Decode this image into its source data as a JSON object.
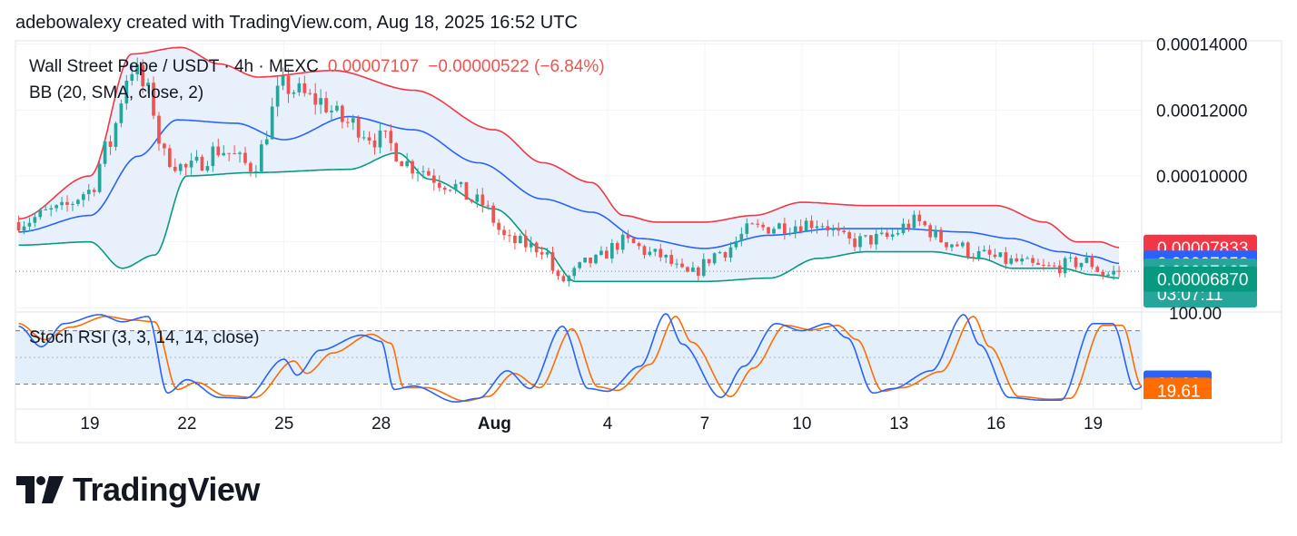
{
  "header": {
    "credit": "adebowalexy created with TradingView.com, Aug 18, 2025 16:52 UTC"
  },
  "legend": {
    "symbol": "Wall Street Pepe / USDT · 4h · MEXC",
    "last": "0.00007107",
    "change": "−0.00000522 (−6.84%)",
    "indicator": "BB (20, SMA, close, 2)",
    "stoch": "Stoch RSI (3, 3, 14, 14, close)"
  },
  "brand": {
    "name": "TradingView"
  },
  "colors": {
    "up": "#26a69a",
    "down": "#ef5350",
    "bb_upper": "#f23645",
    "bb_basis": "#2962ff",
    "bb_lower": "#089981",
    "bb_fill": "#e8f1fb",
    "stoch_k": "#2962ff",
    "stoch_d": "#ff6d00",
    "stoch_band": "#e3effa",
    "grid": "#f0f3fa",
    "badge_upper": "#f23645",
    "badge_basis": "#2962ff",
    "badge_last": "#26a69a",
    "badge_lower": "#089981",
    "badge_k": "#2962ff",
    "badge_d": "#ff6d00"
  },
  "chart_data": [
    {
      "type": "candlestick",
      "title": "Wall Street Pepe / USDT · 4h · MEXC",
      "price_axis_labels": [
        "0.00014000",
        "0.00012000",
        "0.00010000"
      ],
      "ylim": [
        5.9e-05,
        0.000141
      ],
      "x_tick_labels": [
        "19",
        "22",
        "25",
        "28",
        "Aug",
        "4",
        "7",
        "10",
        "13",
        "16",
        "19"
      ],
      "x_ticks_day": [
        0,
        3,
        6,
        9,
        12.5,
        16,
        19,
        22,
        25,
        28,
        31
      ],
      "xlim_day": [
        -2.3,
        32.5
      ],
      "candle_anchors": [
        [
          -2.2,
          8.6e-05
        ],
        [
          -1.0,
          8.95e-05
        ],
        [
          0.0,
          9.55e-05
        ],
        [
          0.5,
          0.000108
        ],
        [
          1.3,
          0.000133
        ],
        [
          1.8,
          0.000125
        ],
        [
          2.3,
          0.000106
        ],
        [
          3.0,
          0.000102
        ],
        [
          4.0,
          0.000108
        ],
        [
          5.0,
          0.000103
        ],
        [
          6.0,
          0.000127
        ],
        [
          7.0,
          0.000123
        ],
        [
          8.0,
          0.000116
        ],
        [
          9.0,
          0.000111
        ],
        [
          10.0,
          0.000103
        ],
        [
          11.0,
          9.8e-05
        ],
        [
          12.0,
          9.2e-05
        ],
        [
          13.0,
          8e-05
        ],
        [
          14.0,
          7.8e-05
        ],
        [
          14.5,
          6.8e-05
        ],
        [
          15.5,
          7.4e-05
        ],
        [
          16.5,
          8e-05
        ],
        [
          17.5,
          7.6e-05
        ],
        [
          18.5,
          7e-05
        ],
        [
          19.5,
          7.7e-05
        ],
        [
          20.5,
          8.4e-05
        ],
        [
          21.5,
          8.5e-05
        ],
        [
          22.5,
          8.6e-05
        ],
        [
          23.5,
          8e-05
        ],
        [
          24.5,
          8.1e-05
        ],
        [
          25.5,
          8.6e-05
        ],
        [
          26.5,
          8e-05
        ],
        [
          27.5,
          7.6e-05
        ],
        [
          28.5,
          7.4e-05
        ],
        [
          29.5,
          7.2e-05
        ],
        [
          30.8,
          7.4e-05
        ],
        [
          31.4,
          7e-05
        ],
        [
          31.8,
          7.11e-05
        ]
      ],
      "bb_upper_anchors": [
        [
          -2.2,
          8.7e-05
        ],
        [
          0.0,
          0.0001
        ],
        [
          1.3,
          0.000137
        ],
        [
          2.8,
          0.000139
        ],
        [
          4.0,
          0.000134
        ],
        [
          5.2,
          0.00013
        ],
        [
          7.5,
          0.000132
        ],
        [
          10.0,
          0.000126
        ],
        [
          12.5,
          0.000114
        ],
        [
          14.0,
          0.000104
        ],
        [
          15.5,
          9.8e-05
        ],
        [
          16.5,
          8.8e-05
        ],
        [
          17.5,
          8.6e-05
        ],
        [
          19.0,
          8.6e-05
        ],
        [
          20.5,
          8.8e-05
        ],
        [
          22.0,
          9.2e-05
        ],
        [
          24.0,
          9.1e-05
        ],
        [
          26.5,
          9.1e-05
        ],
        [
          28.0,
          9.1e-05
        ],
        [
          29.5,
          8.6e-05
        ],
        [
          30.5,
          8e-05
        ],
        [
          31.2,
          8e-05
        ],
        [
          31.8,
          7.83e-05
        ]
      ],
      "bb_basis_anchors": [
        [
          -2.2,
          8.3e-05
        ],
        [
          0.0,
          8.8e-05
        ],
        [
          1.5,
          0.000106
        ],
        [
          2.7,
          0.000117
        ],
        [
          4.5,
          0.000116
        ],
        [
          6.0,
          0.000111
        ],
        [
          8.0,
          0.000118
        ],
        [
          10.0,
          0.000114
        ],
        [
          12.0,
          0.000104
        ],
        [
          14.0,
          9.3e-05
        ],
        [
          15.5,
          8.9e-05
        ],
        [
          17.0,
          8.1e-05
        ],
        [
          19.0,
          7.8e-05
        ],
        [
          21.0,
          8.2e-05
        ],
        [
          23.0,
          8.4e-05
        ],
        [
          25.0,
          8.4e-05
        ],
        [
          27.0,
          8.3e-05
        ],
        [
          28.5,
          8.1e-05
        ],
        [
          30.0,
          7.7e-05
        ],
        [
          31.0,
          7.55e-05
        ],
        [
          31.8,
          7.35e-05
        ]
      ],
      "bb_lower_anchors": [
        [
          -2.2,
          7.9e-05
        ],
        [
          0.0,
          8e-05
        ],
        [
          1.0,
          7.2e-05
        ],
        [
          2.0,
          7.6e-05
        ],
        [
          3.0,
          0.0001
        ],
        [
          5.0,
          0.000101
        ],
        [
          8.0,
          0.000102
        ],
        [
          9.5,
          0.000107
        ],
        [
          10.5,
          9.9e-05
        ],
        [
          12.5,
          9e-05
        ],
        [
          14.0,
          7.8e-05
        ],
        [
          15.0,
          6.8e-05
        ],
        [
          17.0,
          6.8e-05
        ],
        [
          19.0,
          6.8e-05
        ],
        [
          21.0,
          6.9e-05
        ],
        [
          22.5,
          7.5e-05
        ],
        [
          24.0,
          7.7e-05
        ],
        [
          26.0,
          7.7e-05
        ],
        [
          27.5,
          7.5e-05
        ],
        [
          28.5,
          7.2e-05
        ],
        [
          30.0,
          7.2e-05
        ],
        [
          31.0,
          7e-05
        ],
        [
          31.8,
          6.9e-05
        ]
      ],
      "right_badges": [
        {
          "label": "0.00007833",
          "value": 7.833e-05,
          "color_key": "badge_upper"
        },
        {
          "label": "0.00007352",
          "value": 7.352e-05,
          "color_key": "badge_basis"
        },
        {
          "label": "0.00007107",
          "sub": "03:07:11",
          "value": 7.107e-05,
          "color_key": "badge_last"
        },
        {
          "label": "0.00006870",
          "value": 6.87e-05,
          "color_key": "badge_lower"
        }
      ],
      "last_price": 7.107e-05
    },
    {
      "type": "line",
      "title": "Stoch RSI (3, 3, 14, 14, close)",
      "ylim": [
        -8,
        100
      ],
      "band": [
        20,
        80
      ],
      "mid": 50,
      "axis_labels": [
        {
          "label": "100.00",
          "value": 100
        }
      ],
      "k_anchors": [
        [
          -2.2,
          85
        ],
        [
          -1.5,
          62
        ],
        [
          -0.8,
          88
        ],
        [
          0.3,
          98
        ],
        [
          1.0,
          90
        ],
        [
          1.8,
          96
        ],
        [
          2.4,
          10
        ],
        [
          3.0,
          25
        ],
        [
          4.0,
          5
        ],
        [
          4.8,
          4
        ],
        [
          6.0,
          48
        ],
        [
          6.4,
          30
        ],
        [
          7.1,
          58
        ],
        [
          8.4,
          75
        ],
        [
          9.0,
          68
        ],
        [
          9.4,
          14
        ],
        [
          10.0,
          18
        ],
        [
          11.3,
          0
        ],
        [
          12.0,
          4
        ],
        [
          12.9,
          35
        ],
        [
          13.6,
          15
        ],
        [
          14.6,
          85
        ],
        [
          15.4,
          15
        ],
        [
          16.0,
          12
        ],
        [
          17.0,
          40
        ],
        [
          17.8,
          99
        ],
        [
          18.3,
          65
        ],
        [
          19.5,
          5
        ],
        [
          20.2,
          40
        ],
        [
          21.2,
          88
        ],
        [
          22.0,
          80
        ],
        [
          22.8,
          88
        ],
        [
          23.4,
          72
        ],
        [
          24.2,
          10
        ],
        [
          24.8,
          15
        ],
        [
          26.0,
          35
        ],
        [
          27.0,
          98
        ],
        [
          27.5,
          64
        ],
        [
          28.4,
          5
        ],
        [
          29.4,
          2
        ],
        [
          30.0,
          2
        ],
        [
          31.0,
          88
        ],
        [
          31.6,
          88
        ],
        [
          32.3,
          14
        ],
        [
          32.7,
          21
        ]
      ],
      "d_anchors": [
        [
          -2.2,
          88
        ],
        [
          -1.4,
          70
        ],
        [
          -0.6,
          84
        ],
        [
          0.5,
          96
        ],
        [
          1.3,
          92
        ],
        [
          2.0,
          90
        ],
        [
          2.7,
          14
        ],
        [
          3.3,
          22
        ],
        [
          4.2,
          7
        ],
        [
          5.1,
          5
        ],
        [
          6.3,
          46
        ],
        [
          6.7,
          32
        ],
        [
          7.5,
          55
        ],
        [
          8.7,
          76
        ],
        [
          9.3,
          66
        ],
        [
          9.7,
          16
        ],
        [
          10.4,
          16
        ],
        [
          11.6,
          1
        ],
        [
          12.3,
          6
        ],
        [
          13.1,
          32
        ],
        [
          13.9,
          16
        ],
        [
          14.9,
          82
        ],
        [
          15.7,
          17
        ],
        [
          16.3,
          13
        ],
        [
          17.3,
          42
        ],
        [
          18.1,
          96
        ],
        [
          18.6,
          67
        ],
        [
          19.8,
          6
        ],
        [
          20.5,
          38
        ],
        [
          21.5,
          86
        ],
        [
          22.3,
          81
        ],
        [
          23.1,
          86
        ],
        [
          23.7,
          70
        ],
        [
          24.5,
          12
        ],
        [
          25.1,
          16
        ],
        [
          26.3,
          34
        ],
        [
          27.3,
          96
        ],
        [
          27.8,
          62
        ],
        [
          28.7,
          6
        ],
        [
          29.7,
          3
        ],
        [
          30.3,
          4
        ],
        [
          31.3,
          86
        ],
        [
          31.9,
          86
        ],
        [
          32.5,
          18
        ],
        [
          32.7,
          19
        ]
      ],
      "right_badges": [
        {
          "label": "21.00",
          "value": 21,
          "color_key": "badge_k"
        },
        {
          "label": "19.61",
          "value": 13,
          "color_key": "badge_d"
        }
      ]
    }
  ]
}
